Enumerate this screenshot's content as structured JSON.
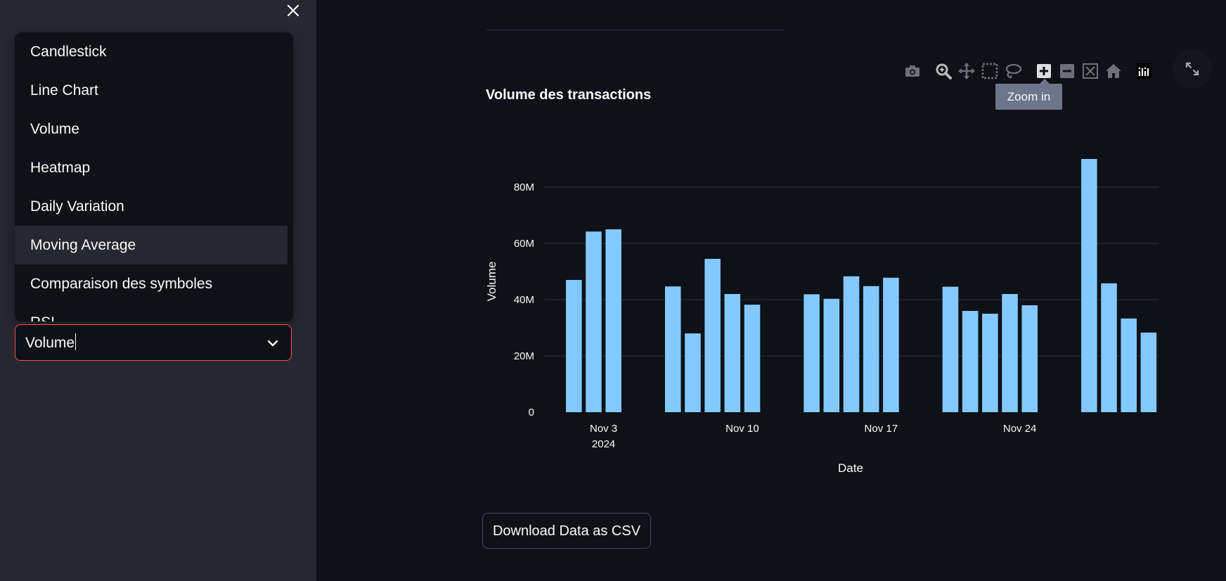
{
  "sidebar": {
    "menu_items": [
      "Candlestick",
      "Line Chart",
      "Volume",
      "Heatmap",
      "Daily Variation",
      "Moving Average",
      "Comparaison des symboles",
      "RSI"
    ],
    "highlighted_item": "Moving Average",
    "select_value": "Volume",
    "accent_color": "#ff4b4b"
  },
  "main": {
    "modebar_icons": [
      "camera-icon",
      "zoom-icon",
      "pan-icon",
      "box-select-icon",
      "lasso-select-icon",
      "zoom-in-icon",
      "zoom-out-icon",
      "autoscale-icon",
      "reset-axes-icon",
      "plotly-logo-icon"
    ],
    "tooltip": "Zoom in",
    "download_label": "Download Data as CSV"
  },
  "chart_data": {
    "type": "bar",
    "title": "Volume des transactions",
    "xlabel": "Date",
    "ylabel": "Volume",
    "x_start": "2024-10-31",
    "x_end": "2024-11-30",
    "ylim": [
      0,
      92000000
    ],
    "yticks": [
      0,
      20000000,
      40000000,
      60000000,
      80000000
    ],
    "ytick_labels": [
      "0",
      "20M",
      "40M",
      "60M",
      "80M"
    ],
    "xticks": [
      "2024-11-03",
      "2024-11-10",
      "2024-11-17",
      "2024-11-24"
    ],
    "xtick_labels": [
      "Nov 3",
      "Nov 10",
      "Nov 17",
      "Nov 24"
    ],
    "xtick_sublabel": "2024",
    "bar_color": "#83c9ff",
    "grid": true,
    "x": [
      "2024-11-01",
      "2024-11-02",
      "2024-11-03",
      "2024-11-06",
      "2024-11-07",
      "2024-11-08",
      "2024-11-09",
      "2024-11-10",
      "2024-11-13",
      "2024-11-14",
      "2024-11-15",
      "2024-11-16",
      "2024-11-17",
      "2024-11-20",
      "2024-11-21",
      "2024-11-22",
      "2024-11-23",
      "2024-11-24",
      "2024-11-27",
      "2024-11-28",
      "2024-11-29",
      "2024-11-30"
    ],
    "values": [
      47000000,
      64200000,
      65000000,
      44700000,
      28000000,
      54500000,
      42000000,
      38200000,
      41900000,
      40300000,
      48300000,
      44800000,
      47800000,
      44600000,
      36000000,
      35000000,
      42000000,
      38000000,
      90000000,
      45800000,
      33300000,
      28300000
    ]
  }
}
